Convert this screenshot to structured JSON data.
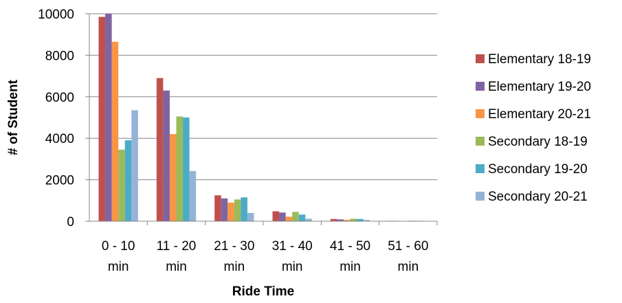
{
  "chart_data": {
    "type": "bar",
    "title": "",
    "xlabel": "Ride Time",
    "ylabel": "# of Student",
    "ylim": [
      0,
      10000
    ],
    "yticks": [
      0,
      2000,
      4000,
      6000,
      8000,
      10000
    ],
    "grid": true,
    "legend_position": "right",
    "categories": [
      [
        "0 - 10",
        "min"
      ],
      [
        "11 - 20",
        "min"
      ],
      [
        "21 - 30",
        "min"
      ],
      [
        "31 - 40",
        "min"
      ],
      [
        "41 - 50",
        "min"
      ],
      [
        "51 - 60",
        "min"
      ]
    ],
    "series": [
      {
        "name": "Elementary 18-19",
        "color": "#c0504d",
        "values": [
          9850,
          6900,
          1250,
          480,
          110,
          20
        ]
      },
      {
        "name": "Elementary 19-20",
        "color": "#8064a2",
        "values": [
          10000,
          6300,
          1100,
          420,
          90,
          15
        ]
      },
      {
        "name": "Elementary 20-21",
        "color": "#f79646",
        "values": [
          8650,
          4200,
          900,
          220,
          70,
          10
        ]
      },
      {
        "name": "Secondary 18-19",
        "color": "#9bbb59",
        "values": [
          3450,
          5050,
          1050,
          450,
          120,
          25
        ]
      },
      {
        "name": "Secondary 19-20",
        "color": "#4bacc6",
        "values": [
          3900,
          5000,
          1150,
          320,
          110,
          20
        ]
      },
      {
        "name": "Secondary 20-21",
        "color": "#95b3d7",
        "values": [
          5350,
          2420,
          400,
          120,
          60,
          10
        ]
      }
    ]
  }
}
